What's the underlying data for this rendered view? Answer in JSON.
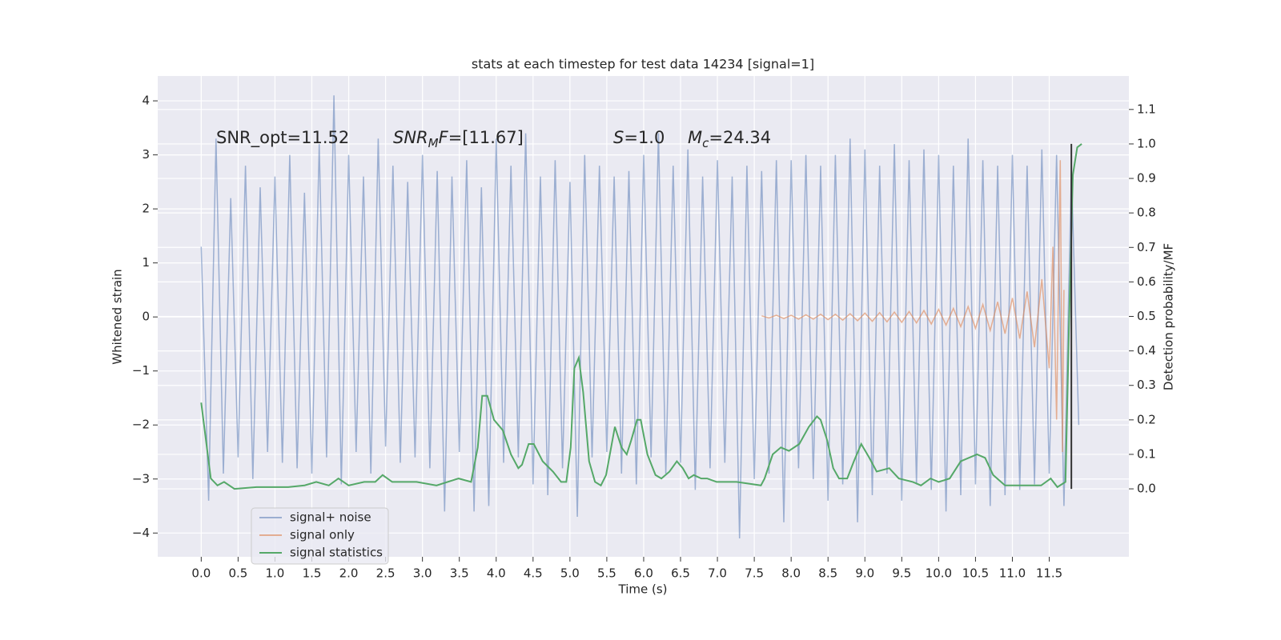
{
  "chart_data": {
    "type": "line",
    "title": "stats at each timestep for test data 14234 [signal=1]",
    "xlabel": "Time (s)",
    "ylabel": "Whitened strain",
    "y2label": "Detection probability/MF",
    "xlim": [
      -0.59,
      12.58
    ],
    "ylim": [
      -4.44,
      4.46
    ],
    "y2lim": [
      -0.197,
      1.197
    ],
    "xticks": [
      {
        "value": 0,
        "label": "0.0"
      },
      0.5,
      {
        "value": 1,
        "label": "1.0"
      },
      1.5,
      {
        "value": 2,
        "label": "2.0"
      },
      2.5,
      {
        "value": 3,
        "label": "3.0"
      },
      3.5,
      {
        "value": 4,
        "label": "4.0"
      },
      4.5,
      {
        "value": 5,
        "label": "5.0"
      },
      5.5,
      {
        "value": 6,
        "label": "6.0"
      },
      6.5,
      {
        "value": 7,
        "label": "7.0"
      },
      7.5,
      {
        "value": 8,
        "label": "8.0"
      },
      8.5,
      {
        "value": 9,
        "label": "9.0"
      },
      9.5,
      {
        "value": 10,
        "label": "10.0"
      },
      10.5,
      {
        "value": 11,
        "label": "11.0"
      },
      11.5
    ],
    "yticks": [
      {
        "value": -4,
        "label": "−4"
      },
      {
        "value": -3,
        "label": "−3"
      },
      {
        "value": -2,
        "label": "−2"
      },
      {
        "value": -1,
        "label": "−1"
      },
      0,
      1,
      2,
      3,
      4
    ],
    "y2ticks": [
      {
        "value": 0,
        "label": "0.0"
      },
      0.1,
      0.2,
      0.3,
      0.4,
      0.5,
      0.6,
      0.7,
      0.8,
      0.9,
      {
        "value": 1,
        "label": "1.0"
      },
      1.1
    ],
    "grid": true,
    "legend": "lower left",
    "series": [
      {
        "name": "signal+ noise",
        "color": "#4c72b0",
        "alpha": 0.5,
        "axis": "y",
        "x": [
          0,
          0.1,
          0.2,
          0.3,
          0.4,
          0.5,
          0.6,
          0.7,
          0.8,
          0.9,
          1,
          1.1,
          1.2,
          1.3,
          1.4,
          1.5,
          1.6,
          1.7,
          1.8,
          1.9,
          2,
          2.1,
          2.2,
          2.3,
          2.4,
          2.5,
          2.6,
          2.7,
          2.8,
          2.9,
          3,
          3.1,
          3.2,
          3.3,
          3.4,
          3.5,
          3.6,
          3.7,
          3.8,
          3.9,
          4,
          4.1,
          4.2,
          4.3,
          4.4,
          4.5,
          4.6,
          4.7,
          4.8,
          4.9,
          5,
          5.1,
          5.2,
          5.3,
          5.4,
          5.5,
          5.6,
          5.7,
          5.8,
          5.9,
          6,
          6.1,
          6.2,
          6.3,
          6.4,
          6.5,
          6.6,
          6.7,
          6.8,
          6.9,
          7,
          7.1,
          7.2,
          7.3,
          7.4,
          7.5,
          7.6,
          7.7,
          7.8,
          7.9,
          8,
          8.1,
          8.2,
          8.3,
          8.4,
          8.5,
          8.6,
          8.7,
          8.8,
          8.9,
          9,
          9.1,
          9.2,
          9.3,
          9.4,
          9.5,
          9.6,
          9.7,
          9.8,
          9.9,
          10,
          10.1,
          10.2,
          10.3,
          10.4,
          10.5,
          10.6,
          10.7,
          10.8,
          10.9,
          11,
          11.1,
          11.2,
          11.3,
          11.4,
          11.5,
          11.6,
          11.7,
          11.8,
          11.9
        ],
        "values": [
          1.3,
          -3.4,
          3.3,
          -2.9,
          2.2,
          -2.6,
          2.8,
          -3.0,
          2.4,
          -2.5,
          2.6,
          -2.7,
          3.0,
          -2.8,
          2.3,
          -2.9,
          3.2,
          -2.6,
          4.1,
          -3.1,
          3.0,
          -2.5,
          2.6,
          -2.9,
          3.3,
          -2.4,
          2.8,
          -2.7,
          2.5,
          -2.6,
          3.0,
          -2.8,
          2.7,
          -3.6,
          2.6,
          -2.5,
          2.9,
          -3.6,
          2.4,
          -3.5,
          3.3,
          -2.7,
          2.8,
          -2.6,
          3.4,
          -3.1,
          2.6,
          -3.3,
          2.9,
          -2.8,
          2.5,
          -3.7,
          3.0,
          -2.6,
          2.8,
          -2.5,
          2.6,
          -2.9,
          2.7,
          -3.1,
          3.0,
          -2.6,
          3.4,
          -2.9,
          2.8,
          -2.7,
          3.1,
          -3.2,
          2.6,
          -2.8,
          2.9,
          -2.7,
          2.6,
          -4.1,
          2.8,
          -3.0,
          2.7,
          -2.9,
          2.9,
          -3.8,
          2.9,
          -2.8,
          3.0,
          -3.0,
          2.8,
          -3.4,
          3.0,
          -3.1,
          3.3,
          -3.8,
          3.1,
          -3.3,
          2.8,
          -2.9,
          3.2,
          -3.4,
          2.9,
          -3.1,
          3.1,
          -3.2,
          3.0,
          -3.6,
          2.8,
          -3.3,
          3.3,
          -3.1,
          2.9,
          -3.5,
          2.8,
          -3.3,
          3.0,
          -3.2,
          2.8,
          -3.1,
          3.1,
          -2.9,
          3.0,
          -3.5,
          2.7,
          -2.0
        ]
      },
      {
        "name": "signal only",
        "color": "#dd8452",
        "alpha": 0.6,
        "axis": "y",
        "x": [
          7.6,
          7.7,
          7.8,
          7.9,
          8,
          8.1,
          8.2,
          8.3,
          8.4,
          8.5,
          8.6,
          8.7,
          8.8,
          8.9,
          9,
          9.1,
          9.2,
          9.3,
          9.4,
          9.5,
          9.6,
          9.7,
          9.8,
          9.9,
          10,
          10.1,
          10.2,
          10.3,
          10.4,
          10.5,
          10.6,
          10.7,
          10.8,
          10.9,
          11,
          11.1,
          11.2,
          11.3,
          11.4,
          11.5,
          11.55,
          11.6,
          11.65,
          11.68,
          11.7
        ],
        "values": [
          0.02,
          -0.02,
          0.03,
          -0.03,
          0.03,
          -0.04,
          0.04,
          -0.04,
          0.05,
          -0.05,
          0.05,
          -0.06,
          0.06,
          -0.07,
          0.07,
          -0.08,
          0.08,
          -0.09,
          0.09,
          -0.1,
          0.1,
          -0.11,
          0.12,
          -0.13,
          0.14,
          -0.15,
          0.16,
          -0.18,
          0.19,
          -0.21,
          0.23,
          -0.25,
          0.28,
          -0.31,
          0.35,
          -0.4,
          0.47,
          -0.56,
          0.7,
          -0.95,
          1.3,
          -1.9,
          2.9,
          -2.5,
          0.5
        ]
      },
      {
        "name": "signal statistics",
        "color": "#55a868",
        "alpha": 1,
        "axis": "y2",
        "x": [
          0,
          0.13,
          0.22,
          0.31,
          0.45,
          0.75,
          1.18,
          1.4,
          1.56,
          1.73,
          1.86,
          2,
          2.21,
          2.36,
          2.46,
          2.59,
          2.92,
          3.19,
          3.49,
          3.66,
          3.75,
          3.81,
          3.88,
          3.97,
          4.09,
          4.2,
          4.3,
          4.35,
          4.44,
          4.51,
          4.63,
          4.77,
          4.88,
          4.95,
          5.01,
          5.06,
          5.12,
          5.18,
          5.26,
          5.34,
          5.42,
          5.49,
          5.61,
          5.7,
          5.77,
          5.83,
          5.91,
          5.96,
          6.05,
          6.16,
          6.24,
          6.35,
          6.45,
          6.53,
          6.61,
          6.68,
          6.78,
          6.86,
          6.99,
          7.26,
          7.59,
          7.64,
          7.75,
          7.86,
          7.97,
          8.11,
          8.24,
          8.35,
          8.4,
          8.49,
          8.57,
          8.65,
          8.76,
          8.85,
          8.95,
          9.06,
          9.16,
          9.33,
          9.46,
          9.65,
          9.76,
          9.89,
          10,
          10.15,
          10.3,
          10.52,
          10.63,
          10.74,
          10.9,
          11.12,
          11.39,
          11.52,
          11.61,
          11.72,
          11.77,
          11.82,
          11.88,
          11.94
        ],
        "values": [
          0.25,
          0.03,
          0.01,
          0.02,
          0,
          0.005,
          0.005,
          0.01,
          0.02,
          0.01,
          0.03,
          0.01,
          0.02,
          0.02,
          0.04,
          0.02,
          0.02,
          0.01,
          0.03,
          0.02,
          0.12,
          0.27,
          0.27,
          0.2,
          0.17,
          0.1,
          0.06,
          0.07,
          0.13,
          0.13,
          0.08,
          0.05,
          0.02,
          0.02,
          0.12,
          0.35,
          0.38,
          0.28,
          0.08,
          0.02,
          0.01,
          0.04,
          0.18,
          0.12,
          0.1,
          0.14,
          0.2,
          0.2,
          0.1,
          0.04,
          0.03,
          0.05,
          0.08,
          0.06,
          0.03,
          0.04,
          0.03,
          0.03,
          0.02,
          0.02,
          0.01,
          0.03,
          0.1,
          0.12,
          0.11,
          0.13,
          0.18,
          0.21,
          0.2,
          0.14,
          0.06,
          0.03,
          0.03,
          0.08,
          0.13,
          0.09,
          0.05,
          0.06,
          0.03,
          0.02,
          0.01,
          0.03,
          0.02,
          0.03,
          0.08,
          0.1,
          0.09,
          0.04,
          0.01,
          0.01,
          0.01,
          0.03,
          0.005,
          0.02,
          0.49,
          0.91,
          0.99,
          1.0
        ]
      }
    ],
    "vline": {
      "x": 11.8,
      "y2": [
        0,
        1
      ],
      "color": "#333333"
    },
    "annotations": [
      [
        {
          "t": "SNR_opt=11.52"
        }
      ],
      [
        {
          "t": "SNR",
          "style": "italic"
        },
        {
          "t": "M",
          "style": "sub"
        },
        {
          "t": "F",
          "style": "italic"
        },
        {
          "t": "=[11.67]"
        }
      ],
      [
        {
          "t": "S",
          "style": "italic"
        },
        {
          "t": "=1.0"
        }
      ],
      [
        {
          "t": "M",
          "style": "italic"
        },
        {
          "t": "c",
          "style": "sub"
        },
        {
          "t": "=24.34"
        }
      ]
    ]
  }
}
